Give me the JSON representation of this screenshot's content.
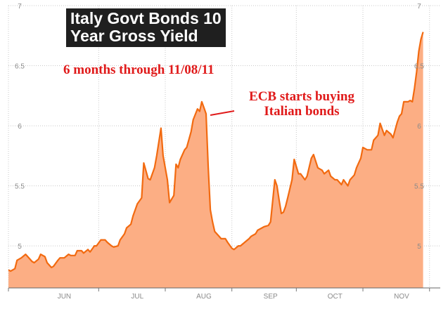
{
  "chart_data": {
    "type": "area",
    "title_lines": [
      "Italy Govt Bonds 10",
      "Year Gross Yield"
    ],
    "subtitle": "6 months through 11/08/11",
    "annotation_lines": [
      "ECB starts buying",
      "Italian bonds"
    ],
    "xlabel": "",
    "ylabel": "",
    "ylim": [
      4.65,
      7.0
    ],
    "y_ticks": [
      "5",
      "5.5",
      "6",
      "6.5",
      "7"
    ],
    "x_ticks": [
      "JUN",
      "JUL",
      "AUG",
      "SEP",
      "OCT",
      "NOV"
    ],
    "x_tick_days": [
      26,
      60,
      91,
      122,
      152,
      183
    ],
    "x_range_days": [
      0,
      201
    ],
    "grid": true,
    "colors": {
      "fill": "#fcae84",
      "line": "#f26a10",
      "text": "#e01a1a",
      "grid": "#c8c8c8"
    },
    "series": [
      {
        "days": [
          0,
          1,
          3,
          4,
          6,
          8,
          9,
          11,
          12,
          14,
          15,
          17,
          18,
          20,
          21,
          23,
          24,
          26,
          28,
          29,
          31,
          32,
          34,
          35,
          37,
          38,
          40,
          41,
          43,
          45,
          46,
          48,
          49,
          51,
          52,
          54,
          55,
          57,
          58,
          60,
          62,
          63,
          65,
          66,
          68,
          69,
          71,
          72,
          74,
          75,
          77,
          78,
          79,
          80,
          82,
          83,
          85,
          86,
          88,
          89,
          90,
          91,
          92,
          93,
          94,
          95,
          96,
          98,
          99,
          101,
          102,
          104,
          105,
          107,
          108,
          110,
          112,
          113,
          115,
          116,
          118,
          119,
          121,
          122,
          124,
          125,
          126,
          127,
          128,
          129,
          130,
          132,
          133,
          135,
          136,
          138,
          139,
          141,
          142,
          144,
          146,
          147,
          149,
          150,
          152,
          153,
          155,
          156,
          158,
          159,
          161,
          162,
          164,
          165,
          167,
          169,
          170,
          172,
          173,
          175,
          176,
          178,
          179,
          181,
          182,
          183,
          184,
          186,
          187,
          188,
          189,
          190,
          191,
          192,
          193
        ],
        "values": [
          4.8,
          4.79,
          4.81,
          4.88,
          4.9,
          4.93,
          4.91,
          4.87,
          4.86,
          4.89,
          4.93,
          4.91,
          4.86,
          4.82,
          4.83,
          4.88,
          4.9,
          4.9,
          4.93,
          4.92,
          4.92,
          4.96,
          4.96,
          4.94,
          4.97,
          4.95,
          5.0,
          5.0,
          5.05,
          5.05,
          5.03,
          5.0,
          4.99,
          5.0,
          5.05,
          5.1,
          5.15,
          5.18,
          5.25,
          5.35,
          5.4,
          5.69,
          5.56,
          5.55,
          5.65,
          5.75,
          5.98,
          5.75,
          5.55,
          5.36,
          5.42,
          5.68,
          5.65,
          5.72,
          5.8,
          5.82,
          5.95,
          6.05,
          6.14,
          6.12,
          6.2,
          6.15,
          6.1,
          5.65,
          5.3,
          5.2,
          5.12,
          5.08,
          5.06,
          5.06,
          5.03,
          4.98,
          4.97,
          5.0,
          5.0,
          5.03,
          5.06,
          5.08,
          5.1,
          5.13,
          5.15,
          5.16,
          5.17,
          5.2,
          5.55,
          5.5,
          5.38,
          5.27,
          5.28,
          5.33,
          5.4,
          5.55,
          5.72,
          5.6,
          5.6,
          5.55,
          5.58,
          5.73,
          5.76,
          5.65,
          5.63,
          5.6,
          5.63,
          5.58,
          5.55,
          5.55,
          5.51,
          5.55,
          5.5,
          5.55,
          5.59,
          5.65,
          5.73,
          5.82,
          5.8,
          5.8,
          5.88,
          5.92,
          6.02,
          5.92,
          5.96,
          5.93,
          5.9,
          6.03,
          6.08,
          6.1,
          6.2,
          6.2,
          6.21,
          6.2,
          6.31,
          6.45,
          6.62,
          6.72,
          6.78
        ]
      }
    ]
  }
}
